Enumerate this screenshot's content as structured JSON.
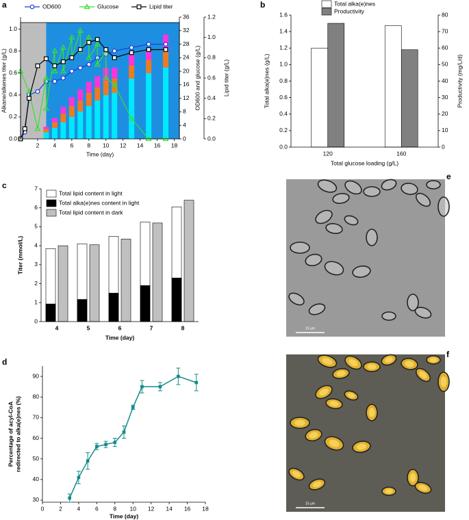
{
  "chart_data": [
    {
      "type": "combo",
      "label": "a",
      "xlabel": "Time (day)",
      "ylabel": "Alkane/alkenes titer (g/L)",
      "y2label": "OD600 and glucose (g/L)",
      "y3label": "Lipid titer (g/L)",
      "xlim": [
        0,
        18.6
      ],
      "xticks": [
        2,
        4,
        6,
        8,
        10,
        12,
        14,
        16,
        18
      ],
      "ylim": [
        0,
        1.11
      ],
      "yticks": [
        {
          "value": 0,
          "label": "0.0"
        },
        0.2,
        0.4,
        0.6,
        0.8,
        {
          "value": 1,
          "label": "1.0"
        }
      ],
      "y2lim": [
        0,
        36
      ],
      "y2ticks": [
        0,
        4,
        8,
        12,
        16,
        20,
        24,
        28,
        32,
        36
      ],
      "y3lim": [
        0,
        1.2
      ],
      "y3ticks": [
        {
          "value": 0,
          "label": "0.0"
        },
        0.2,
        0.4,
        0.6,
        0.8,
        {
          "value": 1,
          "label": "1.0"
        },
        1.2
      ],
      "shading": [
        {
          "from": 0,
          "to": 3,
          "color": "#bdbdbd"
        },
        {
          "from": 3,
          "to": 18.6,
          "color": "#1e8fe0"
        }
      ],
      "bar_x": [
        3,
        4,
        5,
        6,
        7,
        8,
        9,
        10,
        11,
        13,
        15,
        17
      ],
      "bars": [
        {
          "color": "#00e8ff",
          "values": [
            0.06,
            0.1,
            0.15,
            0.2,
            0.25,
            0.3,
            0.35,
            0.4,
            0.42,
            0.55,
            0.6,
            0.65
          ]
        },
        {
          "color": "#ee7a22",
          "values": [
            0.03,
            0.05,
            0.08,
            0.1,
            0.1,
            0.12,
            0.12,
            0.13,
            0.13,
            0.12,
            0.12,
            0.15
          ]
        },
        {
          "color": "#ff33dd",
          "values": [
            0.02,
            0.04,
            0.06,
            0.08,
            0.1,
            0.1,
            0.1,
            0.12,
            0.1,
            0.1,
            0.08,
            0.15
          ]
        }
      ],
      "series": [
        {
          "name": "OD600",
          "color": "#1a3fd8",
          "marker": "circle",
          "axis": "y2",
          "x": [
            0,
            0.5,
            1,
            2,
            3,
            4,
            5,
            6,
            7,
            8,
            9,
            10,
            11,
            13,
            15,
            17
          ],
          "values": [
            0,
            2,
            13,
            14,
            17,
            17,
            18,
            20,
            21,
            22,
            24,
            25,
            26,
            27,
            28,
            28
          ]
        },
        {
          "name": "Glucose",
          "color": "#35e035",
          "marker": "triangle",
          "axis": "y2",
          "x": [
            0,
            1,
            2,
            3,
            3,
            4,
            4,
            5,
            5,
            6,
            6,
            7,
            7,
            8,
            8,
            9,
            9,
            10,
            10,
            11,
            13,
            15,
            17
          ],
          "values": [
            20,
            14,
            3,
            18,
            9,
            26,
            20,
            27,
            20,
            30,
            24,
            32,
            26,
            30,
            24,
            28,
            22,
            26,
            18,
            16,
            6,
            0,
            0
          ]
        },
        {
          "name": "Lipid titer",
          "color": "#000000",
          "marker": "square",
          "axis": "y3",
          "x": [
            0,
            0.5,
            1,
            2,
            3,
            4,
            5,
            6,
            7,
            8,
            9,
            10,
            11,
            13,
            15,
            17
          ],
          "values": [
            0,
            0.1,
            0.4,
            0.72,
            0.79,
            0.72,
            0.76,
            0.8,
            0.88,
            0.95,
            0.98,
            0.88,
            0.8,
            0.85,
            0.88,
            0.88
          ]
        }
      ]
    },
    {
      "type": "bar",
      "label": "b",
      "xlabel": "Total glucose loading (g/L)",
      "ylabel": "Total alka(e)nes (g/L)",
      "y2label": "Productivity (mg/L/d)",
      "categories": [
        "120",
        "160"
      ],
      "series": [
        {
          "name": "Total alka(e)nes",
          "color": "#ffffff",
          "values": [
            1.2,
            1.47
          ]
        },
        {
          "name": "Productivity",
          "color": "#808080",
          "axis": "y2",
          "values": [
            75,
            59
          ]
        }
      ],
      "ylim": [
        0,
        1.6
      ],
      "yticks": [
        {
          "value": 0,
          "label": "0.0"
        },
        0.2,
        0.4,
        0.6,
        0.8,
        {
          "value": 1,
          "label": "1.0"
        },
        1.2,
        1.4,
        1.6
      ],
      "y2lim": [
        0,
        80
      ],
      "y2ticks": [
        0,
        10,
        20,
        30,
        40,
        50,
        60,
        70,
        80
      ]
    },
    {
      "type": "bar",
      "label": "c",
      "xlabel": "Time (day)",
      "ylabel": "Titer (mmol/L)",
      "overlay": true,
      "categories": [
        "4",
        "5",
        "6",
        "7",
        "8"
      ],
      "series": [
        {
          "name": "Total lipid content in light",
          "color": "#ffffff",
          "values": [
            3.85,
            4.1,
            4.5,
            5.25,
            6.05
          ]
        },
        {
          "name": "Total alka(e)nes content in light",
          "color": "#000000",
          "values": [
            0.93,
            1.17,
            1.5,
            1.9,
            2.3
          ]
        },
        {
          "name": "Total lipid content in dark",
          "color": "#c0c0c0",
          "values": [
            4.0,
            4.05,
            4.35,
            5.2,
            6.4
          ]
        }
      ],
      "ylim": [
        0,
        7
      ],
      "yticks": [
        0,
        1,
        2,
        3,
        4,
        5,
        6,
        7
      ]
    },
    {
      "type": "line",
      "label": "d",
      "xlabel": "Time (day)",
      "ylabel": [
        "Percentage of acyl-CoA",
        "redirected to alka(e)nes (%)"
      ],
      "color": "#138a8a",
      "x": [
        3,
        4,
        5,
        6,
        7,
        8,
        9,
        10,
        11,
        13,
        15,
        17
      ],
      "values": [
        31,
        41,
        49,
        56,
        57,
        58,
        63,
        75,
        85,
        85,
        90,
        87
      ],
      "errors": [
        2,
        3,
        4,
        1.5,
        1.5,
        2,
        3,
        1,
        3,
        2,
        4,
        4
      ],
      "xlim": [
        0,
        18
      ],
      "xticks": [
        0,
        2,
        4,
        6,
        8,
        10,
        12,
        14,
        16,
        18
      ],
      "ylim": [
        29,
        95
      ],
      "yticks": [
        30,
        40,
        50,
        60,
        70,
        80,
        90
      ]
    }
  ],
  "images": [
    {
      "label": "e",
      "scale_bar": "15 μm"
    },
    {
      "label": "f",
      "scale_bar": "15 μm"
    }
  ]
}
